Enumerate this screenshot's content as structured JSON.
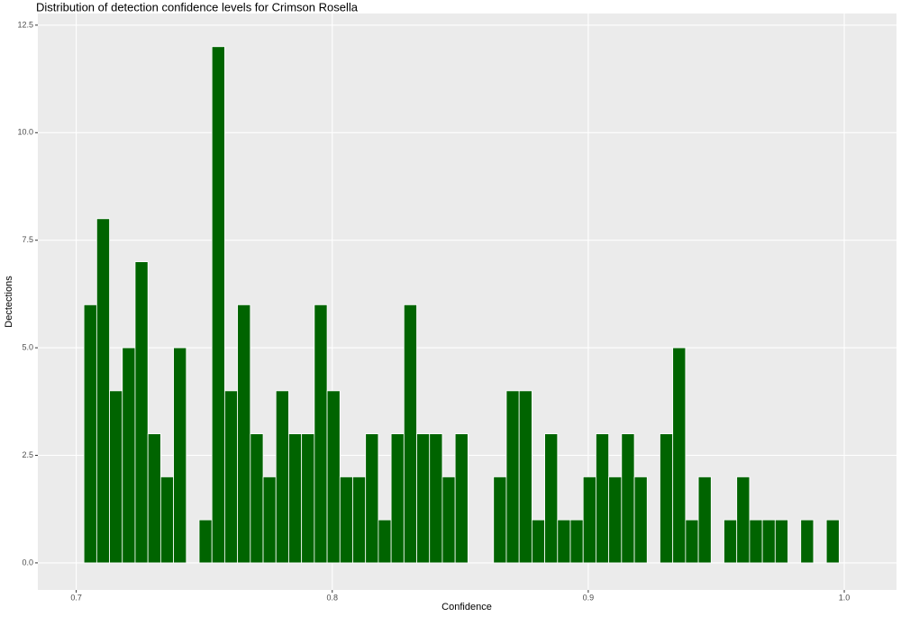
{
  "chart_data": {
    "type": "histogram",
    "title": "Distribution of detection confidence levels for Crimson Rosella",
    "x_label": "Confidence",
    "y_label": "Dectections",
    "bins": [
      0.703,
      0.708,
      0.713,
      0.718,
      0.723,
      0.728,
      0.733,
      0.738,
      0.743,
      0.748,
      0.753,
      0.758,
      0.763,
      0.768,
      0.773,
      0.778,
      0.783,
      0.788,
      0.793,
      0.798,
      0.803,
      0.808,
      0.813,
      0.818,
      0.823,
      0.828,
      0.833,
      0.838,
      0.843,
      0.848,
      0.853,
      0.858,
      0.863,
      0.868,
      0.873,
      0.878,
      0.883,
      0.888,
      0.893,
      0.898,
      0.903,
      0.908,
      0.913,
      0.918,
      0.923,
      0.928,
      0.933,
      0.938,
      0.943,
      0.948,
      0.953,
      0.958,
      0.963,
      0.968,
      0.973,
      0.978,
      0.983,
      0.988,
      0.993,
      0.998
    ],
    "values": [
      6,
      8,
      4,
      5,
      7,
      3,
      2,
      5,
      0,
      1,
      12,
      4,
      6,
      3,
      2,
      4,
      3,
      3,
      6,
      4,
      2,
      2,
      3,
      1,
      3,
      6,
      3,
      3,
      2,
      3,
      0,
      0,
      2,
      4,
      4,
      1,
      3,
      1,
      1,
      2,
      3,
      2,
      3,
      2,
      0,
      3,
      5,
      1,
      2,
      0,
      1,
      2,
      1,
      1,
      1,
      0,
      1,
      0,
      1
    ],
    "color": "#006400",
    "xlim": [
      0.685,
      1.0204
    ],
    "ylim": [
      -0.63,
      12.77
    ],
    "xticks": [
      0.7,
      0.8,
      0.9,
      {
        "value": 1.0,
        "label": "1.0"
      }
    ],
    "yticks": [
      {
        "value": 0,
        "label": "0.0"
      },
      2.5,
      {
        "value": 5,
        "label": "5.0"
      },
      7.5,
      {
        "value": 10,
        "label": "10.0"
      },
      12.5
    ],
    "grid": true
  }
}
